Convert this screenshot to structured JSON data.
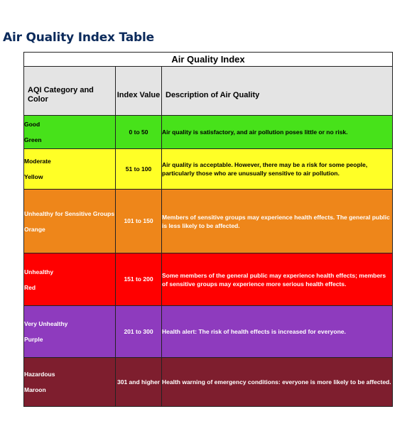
{
  "page": {
    "heading": "Air Quality Index Table"
  },
  "table": {
    "caption": "Air Quality Index",
    "headers": {
      "category": "AQI Category and Color",
      "index": "Index Value",
      "description": "Description of Air Quality"
    },
    "rows": [
      {
        "category": "Good",
        "color_name": "Green",
        "index": "0 to 50",
        "description": "Air quality is satisfactory, and air pollution poses little or no risk.",
        "bg": "#47e21a",
        "text": "#000000"
      },
      {
        "category": "Moderate",
        "color_name": "Yellow",
        "index": "51 to 100",
        "description": "Air quality is acceptable. However, there may be a risk for some people, particularly those who are unusually sensitive to air pollution.",
        "bg": "#ffff26",
        "text": "#000000"
      },
      {
        "category": "Unhealthy for Sensitive Groups",
        "color_name": "Orange",
        "index": "101 to 150",
        "description": "Members of sensitive groups may experience health effects. The general public is less likely to be affected.",
        "bg": "#ee861a",
        "text": "#ffffff"
      },
      {
        "category": "Unhealthy",
        "color_name": "Red",
        "index": "151 to 200",
        "description": "Some members of the general public may experience health effects; members of sensitive groups may experience more serious health effects.",
        "bg": "#ff0000",
        "text": "#ffffff"
      },
      {
        "category": "Very Unhealthy",
        "color_name": "Purple",
        "index": "201 to 300",
        "description": "Health alert: The risk of health effects is increased for everyone.",
        "bg": "#8e3bbe",
        "text": "#ffffff"
      },
      {
        "category": "Hazardous",
        "color_name": "Maroon",
        "index": "301 and higher",
        "description": "Health warning of emergency conditions: everyone is more likely to be affected.",
        "bg": "#7e1e2e",
        "text": "#ffffff"
      }
    ]
  }
}
